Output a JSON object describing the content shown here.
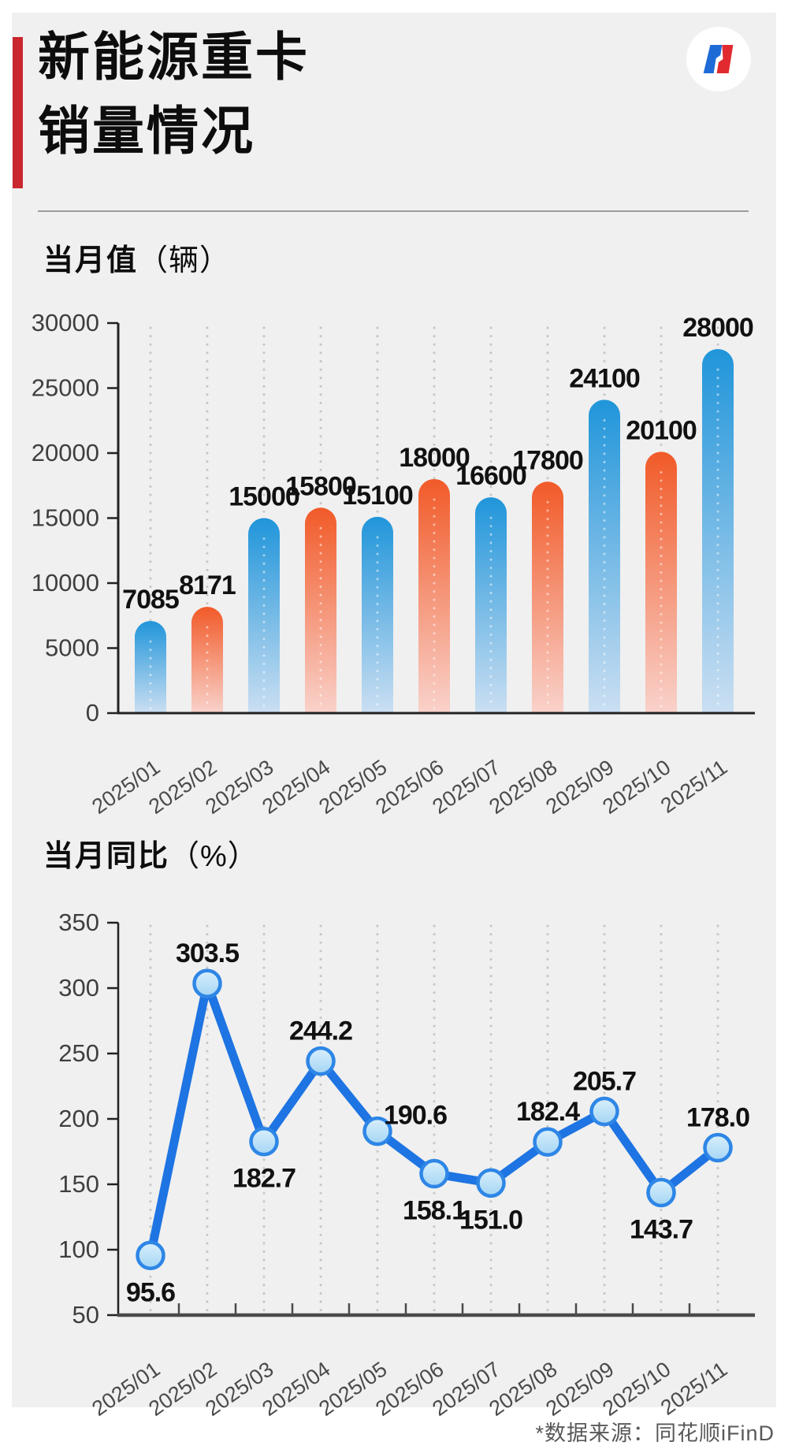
{
  "header": {
    "title_line1": "新能源重卡",
    "title_line2": "销量情况",
    "accent_color": "#c9272d",
    "logo": {
      "icon": "blue-red-n-monogram",
      "blue": "#1e6bd8",
      "red": "#e02a30"
    }
  },
  "footer": {
    "source": "*数据来源：同花顺iFinD"
  },
  "chart_data": [
    {
      "type": "bar",
      "title": "当月值",
      "unit": "（辆）",
      "xlabel": "",
      "ylabel": "",
      "categories": [
        "2025/01",
        "2025/02",
        "2025/03",
        "2025/04",
        "2025/05",
        "2025/06",
        "2025/07",
        "2025/08",
        "2025/09",
        "2025/10",
        "2025/11"
      ],
      "values": [
        7085,
        8171,
        15000,
        15800,
        15100,
        18000,
        16600,
        17800,
        24100,
        20100,
        28000
      ],
      "labels": [
        "7085",
        "8171",
        "15000",
        "15800",
        "15100",
        "18000",
        "16600",
        "17800",
        "24100",
        "20100",
        "28000"
      ],
      "ylim": [
        0,
        30000
      ],
      "ytick_step": 5000,
      "grid": "dotted-vertical",
      "legend": "none",
      "colors": {
        "blue_top": "#2095da",
        "blue_bottom": "#cbdff2",
        "orange_top": "#f15a28",
        "orange_bottom": "#f9d2cb",
        "axis": "#222222",
        "tick_label": "#3f3f3f",
        "grid_dot": "#c6c6c6",
        "value_label": "#111111"
      }
    },
    {
      "type": "line",
      "title": "当月同比",
      "unit": "（%）",
      "xlabel": "",
      "ylabel": "",
      "categories": [
        "2025/01",
        "2025/02",
        "2025/03",
        "2025/04",
        "2025/05",
        "2025/06",
        "2025/07",
        "2025/08",
        "2025/09",
        "2025/10",
        "2025/11"
      ],
      "values": [
        95.6,
        303.5,
        182.7,
        244.2,
        190.6,
        158.1,
        151.0,
        182.4,
        205.7,
        143.7,
        178.0
      ],
      "labels": [
        "95.6",
        "303.5",
        "182.7",
        "244.2",
        "190.6",
        "158.1",
        "151.0",
        "182.4",
        "205.7",
        "143.7",
        "178.0"
      ],
      "label_positions": [
        "below",
        "above",
        "below",
        "above",
        "right",
        "below",
        "below",
        "above",
        "above",
        "below",
        "above"
      ],
      "ylim": [
        50,
        350
      ],
      "ytick_step": 50,
      "grid": "dotted-vertical",
      "legend": "none",
      "colors": {
        "line": "#1e74e2",
        "marker_fill_top": "#d9effc",
        "marker_fill_bottom": "#a4d5f4",
        "marker_stroke": "#2e86e6",
        "axis": "#222222",
        "x_axis": "#4a4a4a",
        "tick_label": "#3f3f3f",
        "grid_dot": "#c6c6c6",
        "value_label": "#111111"
      }
    }
  ]
}
